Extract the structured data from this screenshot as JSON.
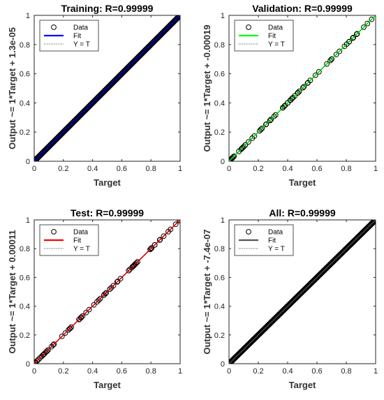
{
  "chart_data": [
    {
      "type": "scatter",
      "title": "Training: R=0.99999",
      "xlabel": "Target",
      "ylabel": "Output ~= 1*Target + 1.3e-05",
      "xlim": [
        0,
        1
      ],
      "ylim": [
        0,
        1
      ],
      "xticks": [
        "0",
        "0.2",
        "0.4",
        "0.6",
        "0.8",
        "1"
      ],
      "yticks": [
        "0",
        "0.2",
        "0.4",
        "0.6",
        "0.8",
        "1"
      ],
      "legend": [
        "Data",
        "Fit",
        "Y = T"
      ],
      "legend_position": "top-left",
      "fit_color": "#0000ff",
      "fit": {
        "slope": 1,
        "intercept": 1.3e-05
      },
      "density": "dense"
    },
    {
      "type": "scatter",
      "title": "Validation: R=0.99999",
      "xlabel": "Target",
      "ylabel": "Output ~= 1*Target + -0.00019",
      "xlim": [
        0,
        1
      ],
      "ylim": [
        0,
        1
      ],
      "xticks": [
        "0",
        "0.2",
        "0.4",
        "0.6",
        "0.8",
        "1"
      ],
      "yticks": [
        "0",
        "0.2",
        "0.4",
        "0.6",
        "0.8",
        "1"
      ],
      "legend": [
        "Data",
        "Fit",
        "Y = T"
      ],
      "legend_position": "top-left",
      "fit_color": "#00ff00",
      "fit": {
        "slope": 1,
        "intercept": -0.00019
      },
      "density": "sparse"
    },
    {
      "type": "scatter",
      "title": "Test: R=0.99999",
      "xlabel": "Target",
      "ylabel": "Output ~= 1*Target + 0.00011",
      "xlim": [
        0,
        1
      ],
      "ylim": [
        0,
        1
      ],
      "xticks": [
        "0",
        "0.2",
        "0.4",
        "0.6",
        "0.8",
        "1"
      ],
      "yticks": [
        "0",
        "0.2",
        "0.4",
        "0.6",
        "0.8",
        "1"
      ],
      "legend": [
        "Data",
        "Fit",
        "Y = T"
      ],
      "legend_position": "top-left",
      "fit_color": "#ff0000",
      "fit": {
        "slope": 1,
        "intercept": 0.00011
      },
      "density": "sparse"
    },
    {
      "type": "scatter",
      "title": "All: R=0.99999",
      "xlabel": "Target",
      "ylabel": "Output ~= 1*Target + -7.4e-07",
      "xlim": [
        0,
        1
      ],
      "ylim": [
        0,
        1
      ],
      "xticks": [
        "0",
        "0.2",
        "0.4",
        "0.6",
        "0.8",
        "1"
      ],
      "yticks": [
        "0",
        "0.2",
        "0.4",
        "0.6",
        "0.8",
        "1"
      ],
      "legend": [
        "Data",
        "Fit",
        "Y = T"
      ],
      "legend_position": "top-left",
      "fit_color": "#555555",
      "fit": {
        "slope": 1,
        "intercept": -7.4e-07
      },
      "density": "dense"
    }
  ]
}
